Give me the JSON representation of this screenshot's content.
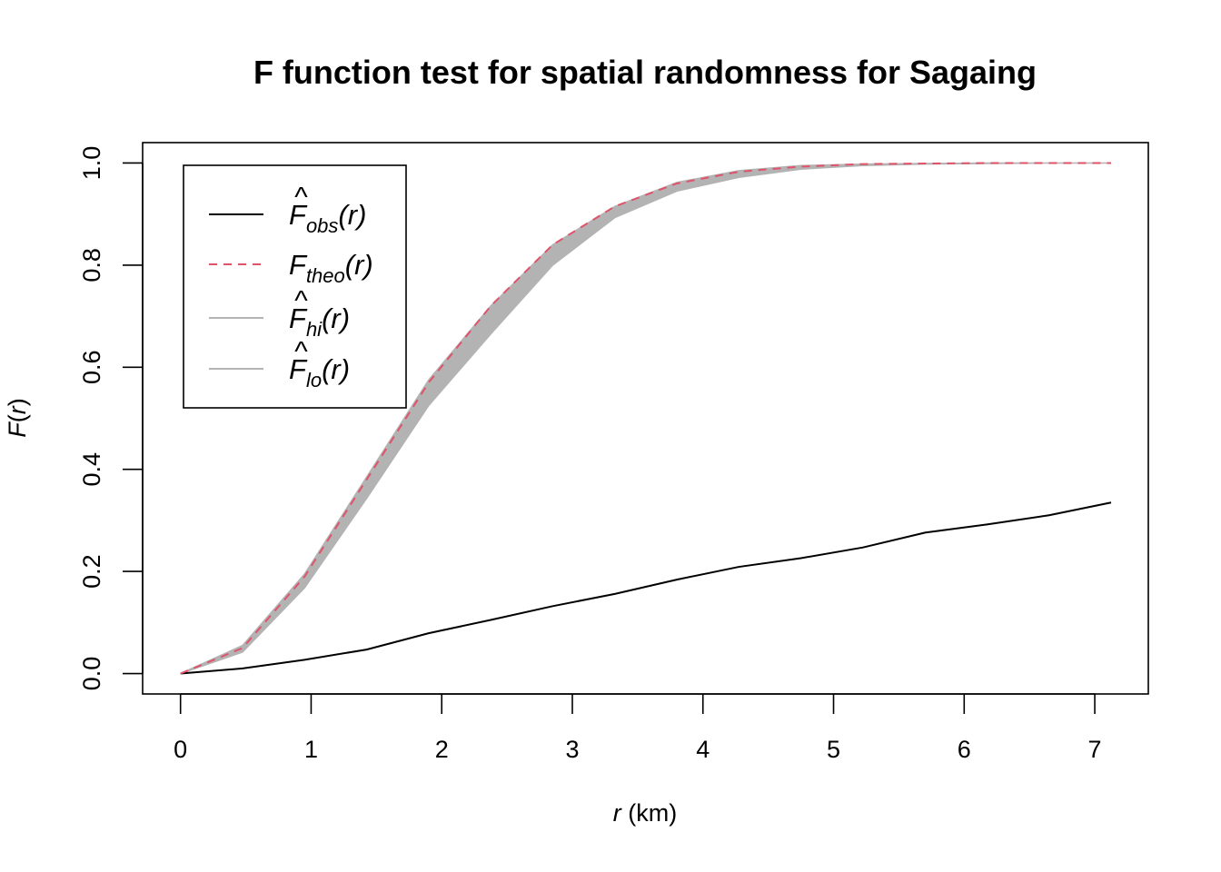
{
  "chart_data": {
    "type": "line",
    "title": "F function test for spatial randomness for Sagaing",
    "xlabel": {
      "italic": "r",
      "plain": " (km)"
    },
    "ylabel": {
      "name": "F",
      "arg": "r"
    },
    "xlim": [
      -0.29,
      7.41
    ],
    "ylim": [
      -0.04,
      1.04
    ],
    "xticks": [
      0,
      1,
      2,
      3,
      4,
      5,
      6,
      7
    ],
    "yticks": [
      "0.0",
      "0.2",
      "0.4",
      "0.6",
      "0.8",
      "1.0"
    ],
    "grid": false,
    "legend_position": "top-left",
    "x": [
      0,
      0.475,
      0.95,
      1.425,
      1.9,
      2.375,
      2.85,
      3.325,
      3.8,
      4.275,
      4.75,
      5.225,
      5.7,
      6.175,
      6.65,
      7.125
    ],
    "series": [
      {
        "key": "obs",
        "name": "F",
        "sub": "obs",
        "hat": true,
        "color": "#000000",
        "style": "solid",
        "values": [
          0,
          0.01,
          0.027,
          0.047,
          0.079,
          0.105,
          0.132,
          0.156,
          0.184,
          0.209,
          0.226,
          0.247,
          0.276,
          0.292,
          0.31,
          0.335
        ]
      },
      {
        "key": "theo",
        "name": "F",
        "sub": "theo",
        "hat": false,
        "color": "#DF536B",
        "style": "dashed",
        "values": [
          0,
          0.05,
          0.19,
          0.38,
          0.57,
          0.72,
          0.84,
          0.915,
          0.96,
          0.983,
          0.993,
          0.998,
          0.999,
          1,
          1,
          1
        ]
      },
      {
        "key": "hi",
        "name": "F",
        "sub": "hi",
        "hat": true,
        "color": "#B3B3B3",
        "style": "band-upper",
        "values": [
          0,
          0.055,
          0.195,
          0.385,
          0.575,
          0.72,
          0.84,
          0.915,
          0.962,
          0.985,
          0.995,
          0.998,
          0.999,
          1,
          1,
          1
        ]
      },
      {
        "key": "lo",
        "name": "F",
        "sub": "lo",
        "hat": true,
        "color": "#B3B3B3",
        "style": "band-lower",
        "values": [
          0,
          0.042,
          0.168,
          0.343,
          0.525,
          0.665,
          0.8,
          0.893,
          0.945,
          0.972,
          0.988,
          0.995,
          0.998,
          0.999,
          1,
          1
        ]
      }
    ]
  }
}
